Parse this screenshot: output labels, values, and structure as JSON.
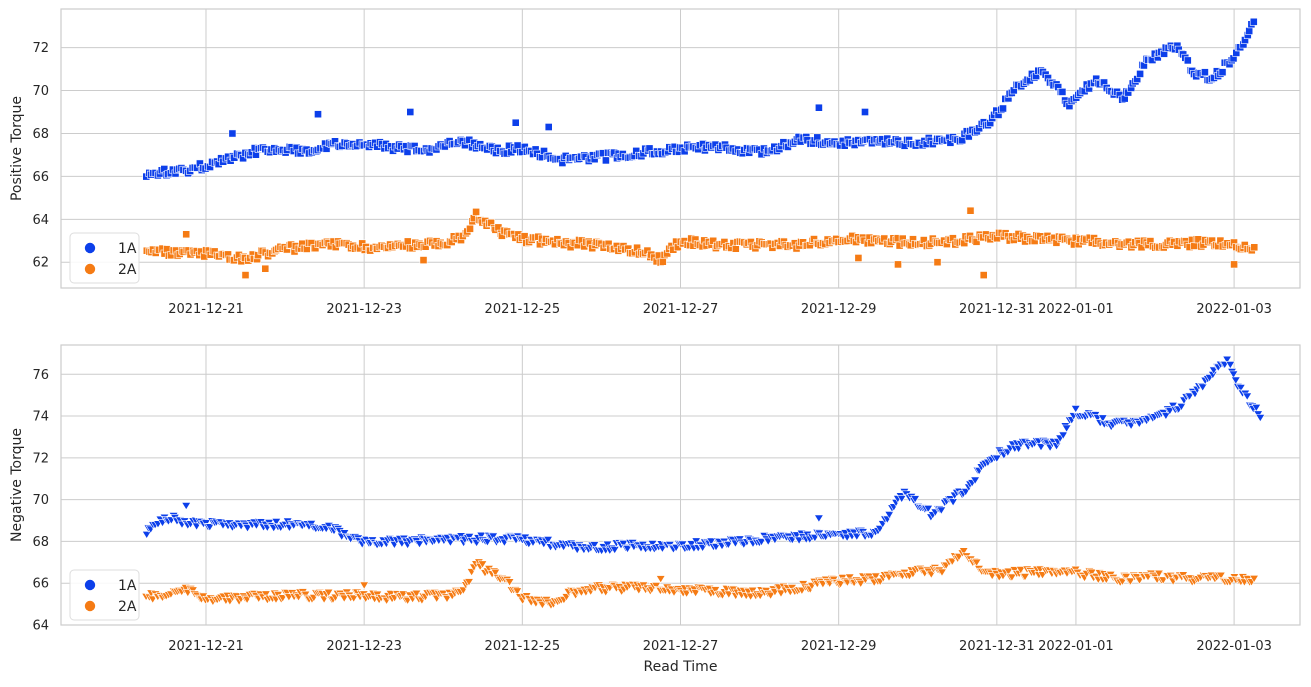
{
  "chart_data": [
    {
      "type": "scatter",
      "marker": "square",
      "ylabel": "Positive Torque",
      "xlabel": "",
      "xlim": [
        "2021-12-19T04:00",
        "2022-01-03T20:00"
      ],
      "ylim": [
        60.8,
        73.8
      ],
      "yticks": [
        62,
        64,
        66,
        68,
        70,
        72
      ],
      "grid": true,
      "legend": {
        "position": "lower-left",
        "entries": [
          {
            "label": "1A",
            "color": "#0c3fea"
          },
          {
            "label": "2A",
            "color": "#f57b14"
          }
        ]
      },
      "series": [
        {
          "name": "1A",
          "color": "#0c3fea",
          "anchors": [
            [
              "2021-12-20T06:00",
              66.1
            ],
            [
              "2021-12-20T18:00",
              66.3
            ],
            [
              "2021-12-21T00:00",
              66.5
            ],
            [
              "2021-12-21T06:00",
              66.8
            ],
            [
              "2021-12-21T18:00",
              67.3
            ],
            [
              "2021-12-22T06:00",
              67.2
            ],
            [
              "2021-12-22T18:00",
              67.6
            ],
            [
              "2021-12-23T06:00",
              67.4
            ],
            [
              "2021-12-23T18:00",
              67.2
            ],
            [
              "2021-12-24T06:00",
              67.6
            ],
            [
              "2021-12-24T16:00",
              67.2
            ],
            [
              "2021-12-25T00:00",
              67.3
            ],
            [
              "2021-12-25T12:00",
              66.8
            ],
            [
              "2021-12-26T00:00",
              66.9
            ],
            [
              "2021-12-26T12:00",
              67.1
            ],
            [
              "2021-12-27T00:00",
              67.3
            ],
            [
              "2021-12-27T12:00",
              67.4
            ],
            [
              "2021-12-28T00:00",
              67.1
            ],
            [
              "2021-12-28T12:00",
              67.7
            ],
            [
              "2021-12-29T00:00",
              67.6
            ],
            [
              "2021-12-29T12:00",
              67.6
            ],
            [
              "2021-12-30T00:00",
              67.6
            ],
            [
              "2021-12-30T12:00",
              67.7
            ],
            [
              "2021-12-30T22:00",
              68.5
            ],
            [
              "2021-12-31T06:00",
              70.2
            ],
            [
              "2021-12-31T14:00",
              70.9
            ],
            [
              "2021-12-31T22:00",
              69.4
            ],
            [
              "2022-01-01T06:00",
              70.5
            ],
            [
              "2022-01-01T14:00",
              69.6
            ],
            [
              "2022-01-01T22:00",
              71.5
            ],
            [
              "2022-01-02T06:00",
              72.1
            ],
            [
              "2022-01-02T12:00",
              70.8
            ],
            [
              "2022-01-02T18:00",
              70.6
            ],
            [
              "2022-01-03T00:00",
              71.6
            ],
            [
              "2022-01-03T06:00",
              73.1
            ]
          ],
          "outliers": [
            [
              "2021-12-21T08:00",
              68.0
            ],
            [
              "2021-12-22T10:00",
              68.9
            ],
            [
              "2021-12-23T14:00",
              69.0
            ],
            [
              "2021-12-24T22:00",
              68.5
            ],
            [
              "2021-12-25T08:00",
              68.3
            ],
            [
              "2021-12-28T18:00",
              69.2
            ],
            [
              "2021-12-29T08:00",
              69.0
            ]
          ]
        },
        {
          "name": "2A",
          "color": "#f57b14",
          "anchors": [
            [
              "2021-12-20T06:00",
              62.5
            ],
            [
              "2021-12-21T00:00",
              62.4
            ],
            [
              "2021-12-21T12:00",
              62.2
            ],
            [
              "2021-12-22T00:00",
              62.6
            ],
            [
              "2021-12-22T12:00",
              62.9
            ],
            [
              "2021-12-23T00:00",
              62.7
            ],
            [
              "2021-12-23T12:00",
              62.8
            ],
            [
              "2021-12-24T00:00",
              62.9
            ],
            [
              "2021-12-24T06:00",
              63.2
            ],
            [
              "2021-12-24T10:00",
              64.2
            ],
            [
              "2021-12-24T16:00",
              63.5
            ],
            [
              "2021-12-25T00:00",
              63.1
            ],
            [
              "2021-12-25T12:00",
              62.9
            ],
            [
              "2021-12-26T00:00",
              62.8
            ],
            [
              "2021-12-26T12:00",
              62.5
            ],
            [
              "2021-12-26T18:00",
              62.1
            ],
            [
              "2021-12-27T00:00",
              63.0
            ],
            [
              "2021-12-27T12:00",
              62.8
            ],
            [
              "2021-12-28T00:00",
              62.8
            ],
            [
              "2021-12-28T12:00",
              62.8
            ],
            [
              "2021-12-29T00:00",
              63.1
            ],
            [
              "2021-12-29T12:00",
              63.0
            ],
            [
              "2021-12-30T00:00",
              62.9
            ],
            [
              "2021-12-30T12:00",
              63.0
            ],
            [
              "2021-12-31T00:00",
              63.2
            ],
            [
              "2021-12-31T12:00",
              63.1
            ],
            [
              "2022-01-01T00:00",
              63.0
            ],
            [
              "2022-01-01T12:00",
              62.9
            ],
            [
              "2022-01-02T00:00",
              62.8
            ],
            [
              "2022-01-02T12:00",
              62.9
            ],
            [
              "2022-01-03T00:00",
              62.8
            ],
            [
              "2022-01-03T06:00",
              62.7
            ]
          ],
          "outliers": [
            [
              "2021-12-20T18:00",
              63.3
            ],
            [
              "2021-12-21T12:00",
              61.4
            ],
            [
              "2021-12-21T18:00",
              61.7
            ],
            [
              "2021-12-23T18:00",
              62.1
            ],
            [
              "2021-12-29T06:00",
              62.2
            ],
            [
              "2021-12-29T18:00",
              61.9
            ],
            [
              "2021-12-30T06:00",
              62.0
            ],
            [
              "2021-12-30T16:00",
              64.4
            ],
            [
              "2021-12-30T20:00",
              61.4
            ],
            [
              "2022-01-03T00:00",
              61.9
            ]
          ]
        }
      ]
    },
    {
      "type": "scatter",
      "marker": "triangle-down",
      "ylabel": "Negative Torque",
      "xlabel": "Read Time",
      "xlim": [
        "2021-12-19T04:00",
        "2022-01-03T20:00"
      ],
      "ylim": [
        64.0,
        77.4
      ],
      "yticks": [
        64,
        66,
        68,
        70,
        72,
        74,
        76
      ],
      "grid": true,
      "legend": {
        "position": "lower-left",
        "entries": [
          {
            "label": "1A",
            "color": "#0c3fea"
          },
          {
            "label": "2A",
            "color": "#f57b14"
          }
        ]
      },
      "series": [
        {
          "name": "1A",
          "color": "#0c3fea",
          "anchors": [
            [
              "2021-12-20T06:00",
              68.4
            ],
            [
              "2021-12-20T12:00",
              69.1
            ],
            [
              "2021-12-21T00:00",
              68.8
            ],
            [
              "2021-12-21T12:00",
              68.8
            ],
            [
              "2021-12-22T00:00",
              68.8
            ],
            [
              "2021-12-22T12:00",
              68.7
            ],
            [
              "2021-12-23T00:00",
              68.0
            ],
            [
              "2021-12-23T12:00",
              68.0
            ],
            [
              "2021-12-24T00:00",
              68.1
            ],
            [
              "2021-12-24T12:00",
              68.1
            ],
            [
              "2021-12-25T00:00",
              68.1
            ],
            [
              "2021-12-25T12:00",
              67.8
            ],
            [
              "2021-12-26T00:00",
              67.7
            ],
            [
              "2021-12-26T12:00",
              67.8
            ],
            [
              "2021-12-27T00:00",
              67.8
            ],
            [
              "2021-12-27T12:00",
              67.9
            ],
            [
              "2021-12-28T00:00",
              68.1
            ],
            [
              "2021-12-28T12:00",
              68.2
            ],
            [
              "2021-12-29T00:00",
              68.3
            ],
            [
              "2021-12-29T12:00",
              68.4
            ],
            [
              "2021-12-29T20:00",
              70.4
            ],
            [
              "2021-12-30T04:00",
              69.3
            ],
            [
              "2021-12-30T14:00",
              70.4
            ],
            [
              "2021-12-30T22:00",
              72.0
            ],
            [
              "2021-12-31T08:00",
              72.7
            ],
            [
              "2021-12-31T18:00",
              72.6
            ],
            [
              "2022-01-01T00:00",
              74.2
            ],
            [
              "2022-01-01T12:00",
              73.6
            ],
            [
              "2022-01-01T22:00",
              73.8
            ],
            [
              "2022-01-02T08:00",
              74.5
            ],
            [
              "2022-01-02T16:00",
              75.8
            ],
            [
              "2022-01-02T22:00",
              76.7
            ],
            [
              "2022-01-03T02:00",
              75.2
            ],
            [
              "2022-01-03T08:00",
              74.0
            ]
          ],
          "outliers": [
            [
              "2021-12-20T18:00",
              69.7
            ],
            [
              "2021-12-28T18:00",
              69.1
            ]
          ]
        },
        {
          "name": "2A",
          "color": "#f57b14",
          "anchors": [
            [
              "2021-12-20T06:00",
              65.3
            ],
            [
              "2021-12-20T18:00",
              65.7
            ],
            [
              "2021-12-21T00:00",
              65.2
            ],
            [
              "2021-12-21T12:00",
              65.3
            ],
            [
              "2021-12-22T00:00",
              65.4
            ],
            [
              "2021-12-22T12:00",
              65.4
            ],
            [
              "2021-12-23T00:00",
              65.4
            ],
            [
              "2021-12-23T12:00",
              65.3
            ],
            [
              "2021-12-24T00:00",
              65.4
            ],
            [
              "2021-12-24T06:00",
              65.6
            ],
            [
              "2021-12-24T10:00",
              66.9
            ],
            [
              "2021-12-24T18:00",
              66.2
            ],
            [
              "2021-12-25T00:00",
              65.3
            ],
            [
              "2021-12-25T08:00",
              65.0
            ],
            [
              "2021-12-25T18:00",
              65.7
            ],
            [
              "2021-12-26T12:00",
              65.8
            ],
            [
              "2021-12-27T00:00",
              65.7
            ],
            [
              "2021-12-27T12:00",
              65.6
            ],
            [
              "2021-12-28T00:00",
              65.5
            ],
            [
              "2021-12-28T12:00",
              65.8
            ],
            [
              "2021-12-29T00:00",
              66.1
            ],
            [
              "2021-12-29T12:00",
              66.2
            ],
            [
              "2021-12-30T00:00",
              66.5
            ],
            [
              "2021-12-30T08:00",
              66.7
            ],
            [
              "2021-12-30T14:00",
              67.6
            ],
            [
              "2021-12-30T20:00",
              66.4
            ],
            [
              "2021-12-31T12:00",
              66.5
            ],
            [
              "2022-01-01T00:00",
              66.5
            ],
            [
              "2022-01-01T12:00",
              66.2
            ],
            [
              "2022-01-02T00:00",
              66.3
            ],
            [
              "2022-01-02T12:00",
              66.2
            ],
            [
              "2022-01-03T00:00",
              66.2
            ],
            [
              "2022-01-03T06:00",
              66.2
            ]
          ],
          "outliers": [
            [
              "2021-12-23T00:00",
              65.9
            ],
            [
              "2021-12-26T18:00",
              66.2
            ]
          ]
        }
      ]
    }
  ]
}
